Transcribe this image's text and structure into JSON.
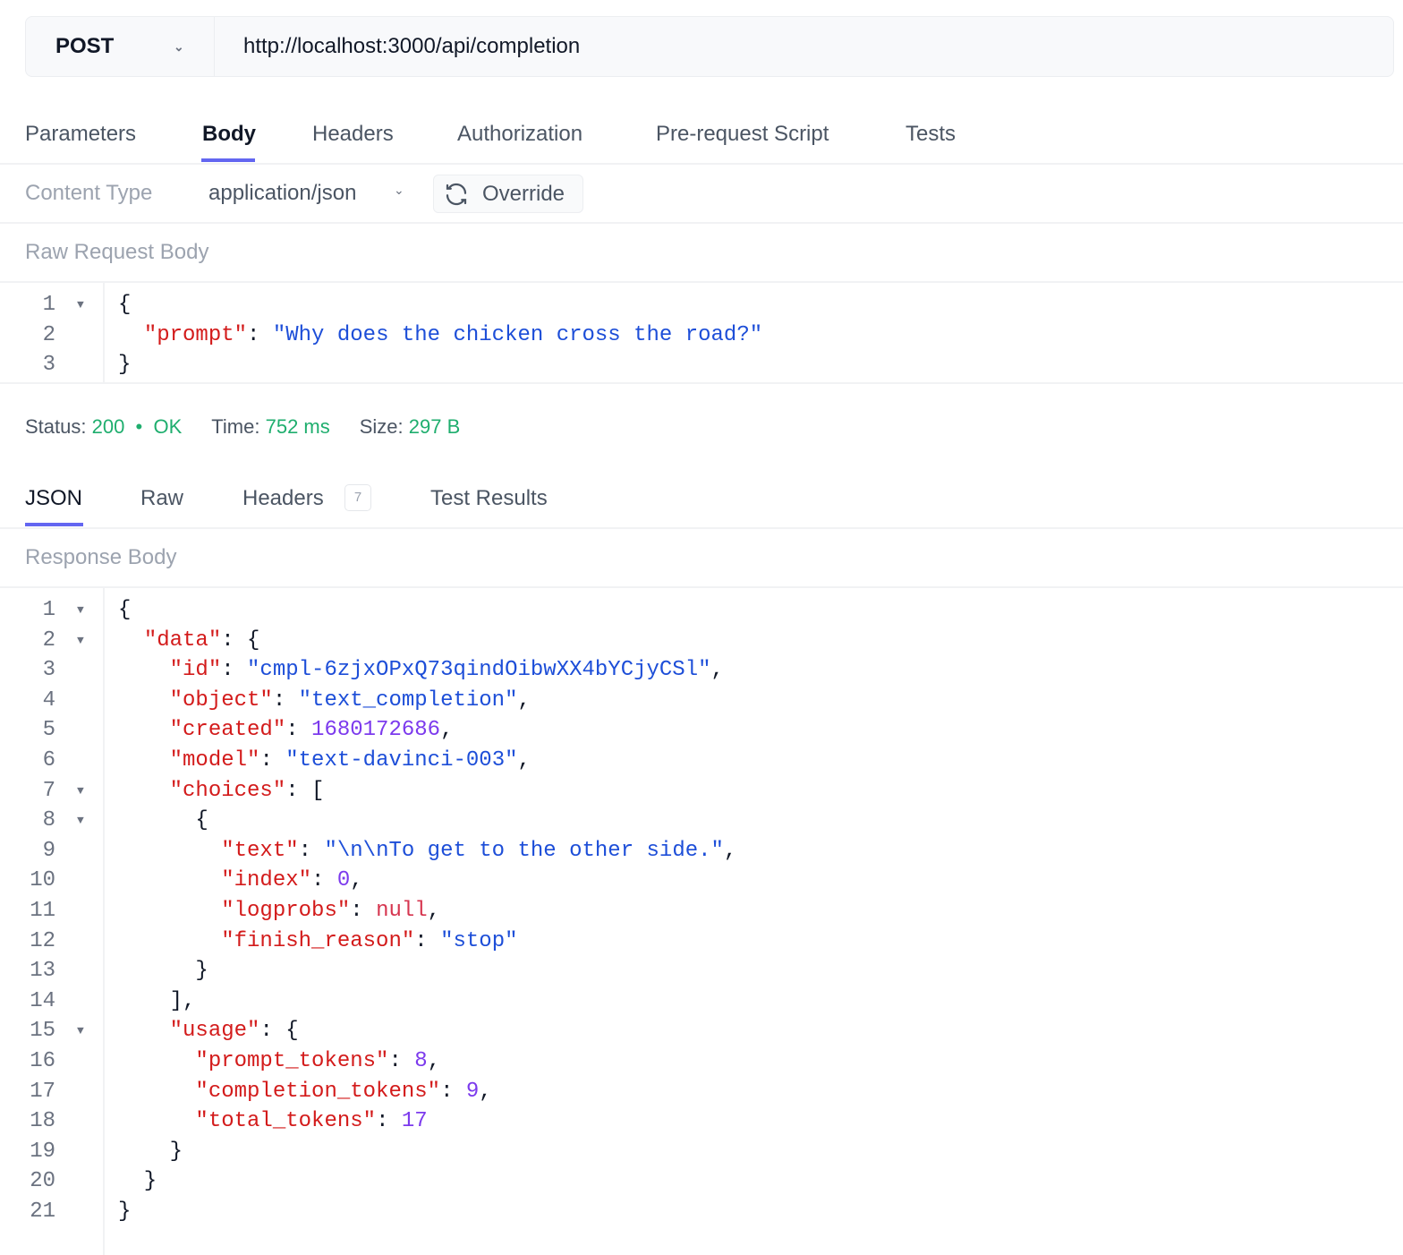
{
  "request": {
    "method": "POST",
    "url": "http://localhost:3000/api/completion"
  },
  "request_tabs": [
    {
      "label": "Parameters",
      "active": false
    },
    {
      "label": "Body",
      "active": true
    },
    {
      "label": "Headers",
      "active": false
    },
    {
      "label": "Authorization",
      "active": false
    },
    {
      "label": "Pre-request Script",
      "active": false
    },
    {
      "label": "Tests",
      "active": false
    }
  ],
  "content_type": {
    "label": "Content Type",
    "value": "application/json",
    "override_label": "Override"
  },
  "raw_body_label": "Raw Request Body",
  "request_body": [
    {
      "n": "1",
      "fold": true,
      "tokens": [
        [
          "punc",
          "{"
        ]
      ]
    },
    {
      "n": "2",
      "fold": false,
      "tokens": [
        [
          "punc",
          "  "
        ],
        [
          "key",
          "\"prompt\""
        ],
        [
          "punc",
          ": "
        ],
        [
          "str",
          "\"Why does the chicken cross the road?\""
        ]
      ]
    },
    {
      "n": "3",
      "fold": false,
      "tokens": [
        [
          "punc",
          "}"
        ]
      ]
    }
  ],
  "status": {
    "status_label": "Status:",
    "code": "200",
    "text": "OK",
    "time_label": "Time:",
    "time": "752 ms",
    "size_label": "Size:",
    "size": "297 B"
  },
  "response_tabs": [
    {
      "label": "JSON",
      "active": true
    },
    {
      "label": "Raw",
      "active": false
    },
    {
      "label": "Headers",
      "active": false,
      "badge": "7"
    },
    {
      "label": "Test Results",
      "active": false
    }
  ],
  "response_body_label": "Response Body",
  "response_body": [
    {
      "n": "1",
      "fold": true,
      "tokens": [
        [
          "punc",
          "{"
        ]
      ]
    },
    {
      "n": "2",
      "fold": true,
      "tokens": [
        [
          "punc",
          "  "
        ],
        [
          "key",
          "\"data\""
        ],
        [
          "punc",
          ": {"
        ]
      ]
    },
    {
      "n": "3",
      "fold": false,
      "tokens": [
        [
          "punc",
          "    "
        ],
        [
          "key",
          "\"id\""
        ],
        [
          "punc",
          ": "
        ],
        [
          "str",
          "\"cmpl-6zjxOPxQ73qindOibwXX4bYCjyCSl\""
        ],
        [
          "punc",
          ","
        ]
      ]
    },
    {
      "n": "4",
      "fold": false,
      "tokens": [
        [
          "punc",
          "    "
        ],
        [
          "key",
          "\"object\""
        ],
        [
          "punc",
          ": "
        ],
        [
          "str",
          "\"text_completion\""
        ],
        [
          "punc",
          ","
        ]
      ]
    },
    {
      "n": "5",
      "fold": false,
      "tokens": [
        [
          "punc",
          "    "
        ],
        [
          "key",
          "\"created\""
        ],
        [
          "punc",
          ": "
        ],
        [
          "num",
          "1680172686"
        ],
        [
          "punc",
          ","
        ]
      ]
    },
    {
      "n": "6",
      "fold": false,
      "tokens": [
        [
          "punc",
          "    "
        ],
        [
          "key",
          "\"model\""
        ],
        [
          "punc",
          ": "
        ],
        [
          "str",
          "\"text-davinci-003\""
        ],
        [
          "punc",
          ","
        ]
      ]
    },
    {
      "n": "7",
      "fold": true,
      "tokens": [
        [
          "punc",
          "    "
        ],
        [
          "key",
          "\"choices\""
        ],
        [
          "punc",
          ": ["
        ]
      ]
    },
    {
      "n": "8",
      "fold": true,
      "tokens": [
        [
          "punc",
          "      {"
        ]
      ]
    },
    {
      "n": "9",
      "fold": false,
      "tokens": [
        [
          "punc",
          "        "
        ],
        [
          "key",
          "\"text\""
        ],
        [
          "punc",
          ": "
        ],
        [
          "str",
          "\"\\n\\nTo get to the other side.\""
        ],
        [
          "punc",
          ","
        ]
      ]
    },
    {
      "n": "10",
      "fold": false,
      "tokens": [
        [
          "punc",
          "        "
        ],
        [
          "key",
          "\"index\""
        ],
        [
          "punc",
          ": "
        ],
        [
          "num",
          "0"
        ],
        [
          "punc",
          ","
        ]
      ]
    },
    {
      "n": "11",
      "fold": false,
      "tokens": [
        [
          "punc",
          "        "
        ],
        [
          "key",
          "\"logprobs\""
        ],
        [
          "punc",
          ": "
        ],
        [
          "null",
          "null"
        ],
        [
          "punc",
          ","
        ]
      ]
    },
    {
      "n": "12",
      "fold": false,
      "tokens": [
        [
          "punc",
          "        "
        ],
        [
          "key",
          "\"finish_reason\""
        ],
        [
          "punc",
          ": "
        ],
        [
          "str",
          "\"stop\""
        ]
      ]
    },
    {
      "n": "13",
      "fold": false,
      "tokens": [
        [
          "punc",
          "      }"
        ]
      ]
    },
    {
      "n": "14",
      "fold": false,
      "tokens": [
        [
          "punc",
          "    ],"
        ]
      ]
    },
    {
      "n": "15",
      "fold": true,
      "tokens": [
        [
          "punc",
          "    "
        ],
        [
          "key",
          "\"usage\""
        ],
        [
          "punc",
          ": {"
        ]
      ]
    },
    {
      "n": "16",
      "fold": false,
      "tokens": [
        [
          "punc",
          "      "
        ],
        [
          "key",
          "\"prompt_tokens\""
        ],
        [
          "punc",
          ": "
        ],
        [
          "num",
          "8"
        ],
        [
          "punc",
          ","
        ]
      ]
    },
    {
      "n": "17",
      "fold": false,
      "tokens": [
        [
          "punc",
          "      "
        ],
        [
          "key",
          "\"completion_tokens\""
        ],
        [
          "punc",
          ": "
        ],
        [
          "num",
          "9"
        ],
        [
          "punc",
          ","
        ]
      ]
    },
    {
      "n": "18",
      "fold": false,
      "tokens": [
        [
          "punc",
          "      "
        ],
        [
          "key",
          "\"total_tokens\""
        ],
        [
          "punc",
          ": "
        ],
        [
          "num",
          "17"
        ]
      ]
    },
    {
      "n": "19",
      "fold": false,
      "tokens": [
        [
          "punc",
          "    }"
        ]
      ]
    },
    {
      "n": "20",
      "fold": false,
      "tokens": [
        [
          "punc",
          "  }"
        ]
      ]
    },
    {
      "n": "21",
      "fold": false,
      "tokens": [
        [
          "punc",
          "}"
        ]
      ]
    }
  ],
  "colors": {
    "accent": "#6366f1",
    "success": "#1fae6e",
    "key": "#d31b1b",
    "string": "#1d4ed8",
    "number": "#7c3aed"
  }
}
